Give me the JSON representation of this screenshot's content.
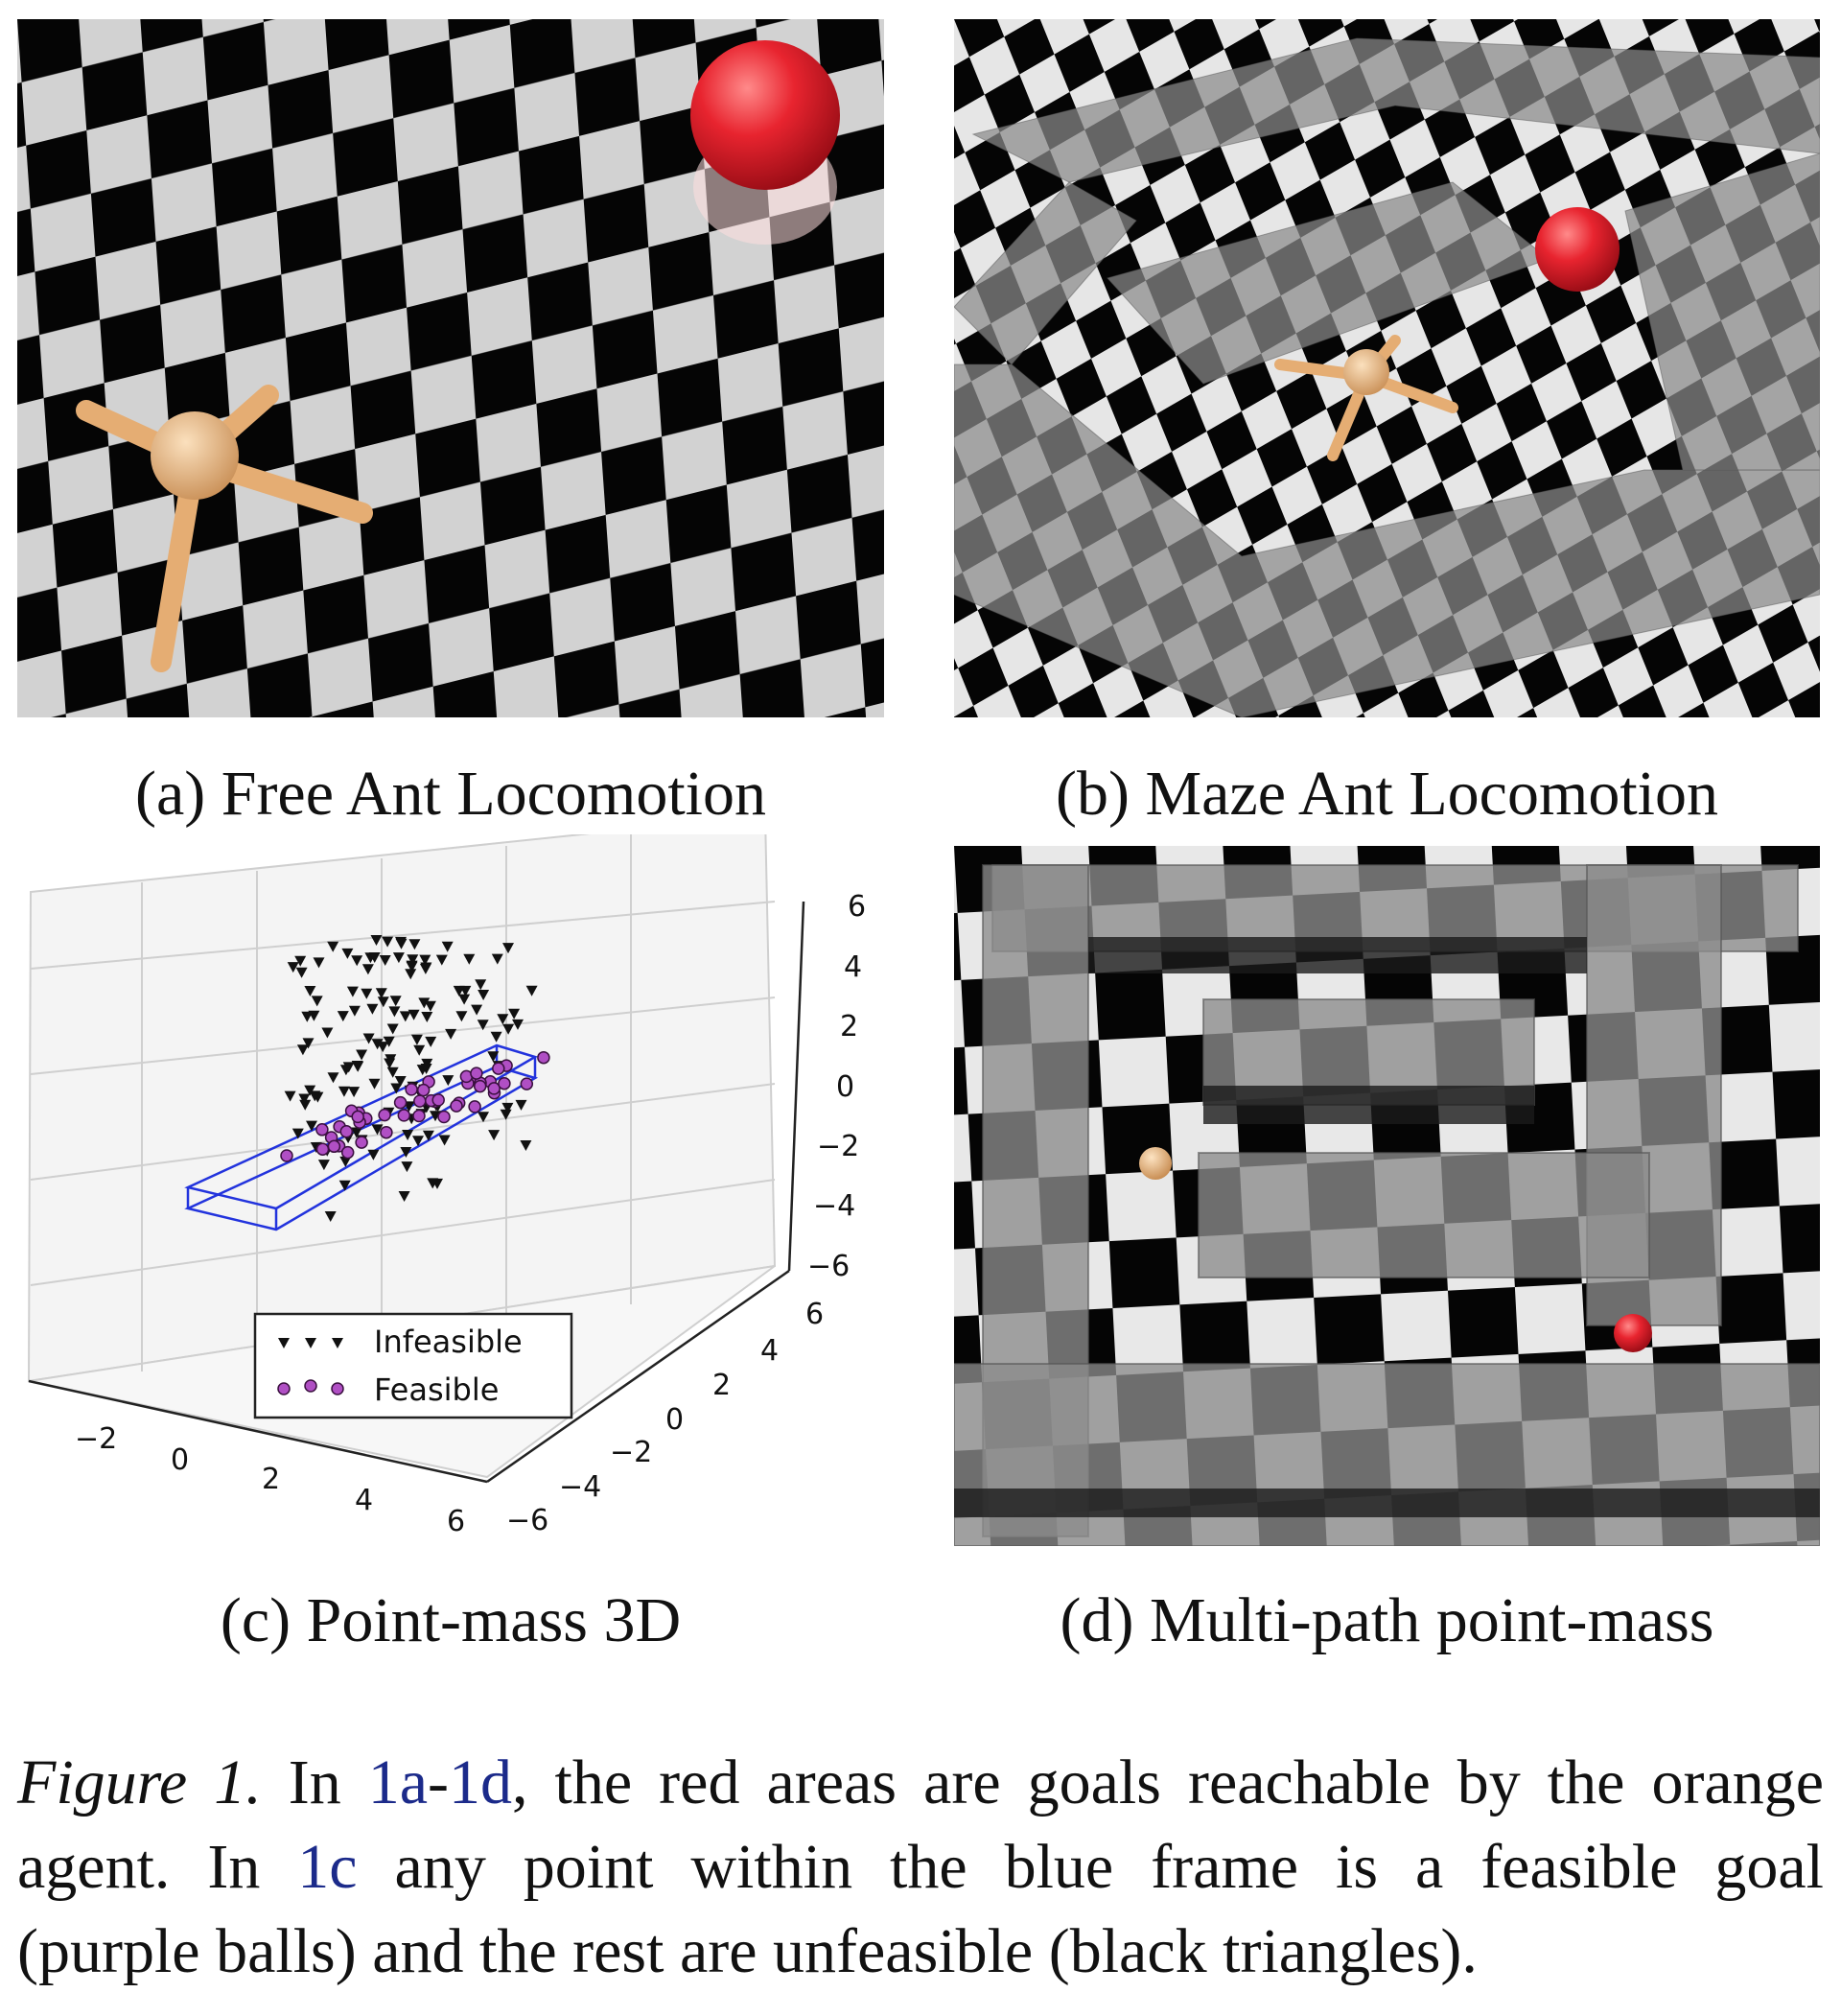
{
  "panels": {
    "a": {
      "caption": "(a) Free Ant Locomotion"
    },
    "b": {
      "caption": "(b) Maze Ant Locomotion"
    },
    "c": {
      "caption": "(c) Point-mass 3D"
    },
    "d": {
      "caption": "(d) Multi-path point-mass"
    }
  },
  "plot3d": {
    "legend": {
      "infeasible": "Infeasible",
      "feasible": "Feasible"
    },
    "z_ticks": [
      "6",
      "4",
      "2",
      "0",
      "−2",
      "−4",
      "−6"
    ],
    "y_ticks": [
      "6",
      "4",
      "2",
      "0",
      "−2",
      "−4",
      "−6"
    ],
    "x_ticks": [
      "−2",
      "0",
      "2",
      "4",
      "6"
    ],
    "colors": {
      "infeasible": "#111111",
      "feasible": "#b04fc4",
      "frame": "#2233dd"
    }
  },
  "figure_caption": {
    "label": "Figure 1.",
    "l1_a": " In ",
    "ref_1a": "1a",
    "dash": "-",
    "ref_1d": "1d",
    "l1_b": ", the red areas are goals reachable by the orange",
    "l2_a": "agent.  In ",
    "ref_1c": "1c",
    "l2_b": " any point within the blue frame is a feasible goal",
    "l3": "(purple balls) and the rest are unfeasible (black triangles)."
  },
  "colors": {
    "goal": "#e02030",
    "agent": "#e8b880",
    "link": "#1b2a8a"
  }
}
